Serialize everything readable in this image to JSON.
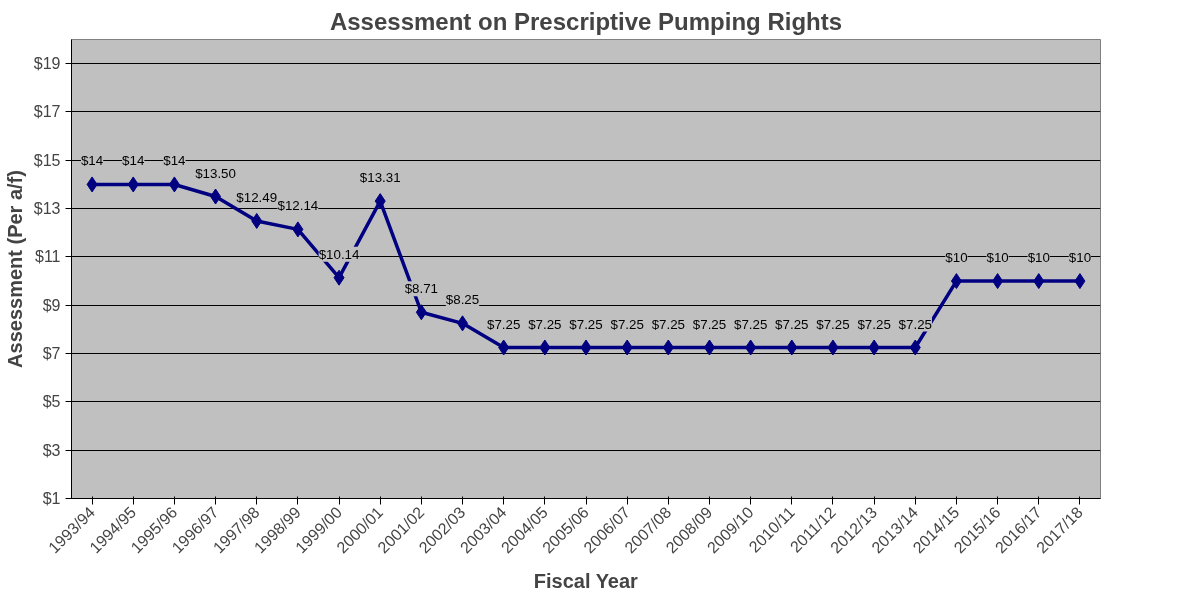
{
  "chart_data": {
    "type": "line",
    "title": "Assessment on Prescriptive Pumping Rights",
    "xlabel": "Fiscal Year",
    "ylabel": "Assessment (Per a/f)",
    "categories": [
      "1993/94",
      "1994/95",
      "1995/96",
      "1996/97",
      "1997/98",
      "1998/99",
      "1999/00",
      "2000/01",
      "2001/02",
      "2002/03",
      "2003/04",
      "2004/05",
      "2005/06",
      "2006/07",
      "2007/08",
      "2008/09",
      "2009/10",
      "2010/11",
      "2011/12",
      "2012/13",
      "2013/14",
      "2014/15",
      "2015/16",
      "2016/17",
      "2017/18"
    ],
    "series": [
      {
        "color": "#000080",
        "values": [
          14,
          14,
          14,
          13.5,
          12.49,
          12.14,
          10.14,
          13.31,
          8.71,
          8.25,
          7.25,
          7.25,
          7.25,
          7.25,
          7.25,
          7.25,
          7.25,
          7.25,
          7.25,
          7.25,
          7.25,
          10,
          10,
          10,
          10
        ],
        "value_labels": [
          "$14",
          "$14",
          "$14",
          "$13.50",
          "$12.49",
          "$12.14",
          "$10.14",
          "$13.31",
          "$8.71",
          "$8.25",
          "$7.25",
          "$7.25",
          "$7.25",
          "$7.25",
          "$7.25",
          "$7.25",
          "$7.25",
          "$7.25",
          "$7.25",
          "$7.25",
          "$7.25",
          "$10",
          "$10",
          "$10",
          "$10"
        ]
      }
    ],
    "ylim": [
      1,
      20
    ],
    "yticks": [
      {
        "value": 1,
        "label": "$1"
      },
      {
        "value": 3,
        "label": "$3"
      },
      {
        "value": 5,
        "label": "$5"
      },
      {
        "value": 7,
        "label": "$7"
      },
      {
        "value": 9,
        "label": "$9"
      },
      {
        "value": 11,
        "label": "$11"
      },
      {
        "value": 13,
        "label": "$13"
      },
      {
        "value": 15,
        "label": "$15"
      },
      {
        "value": 17,
        "label": "$17"
      },
      {
        "value": 19,
        "label": "$19"
      }
    ],
    "grid": "y",
    "marker": "diamond",
    "line_style": "solid"
  }
}
